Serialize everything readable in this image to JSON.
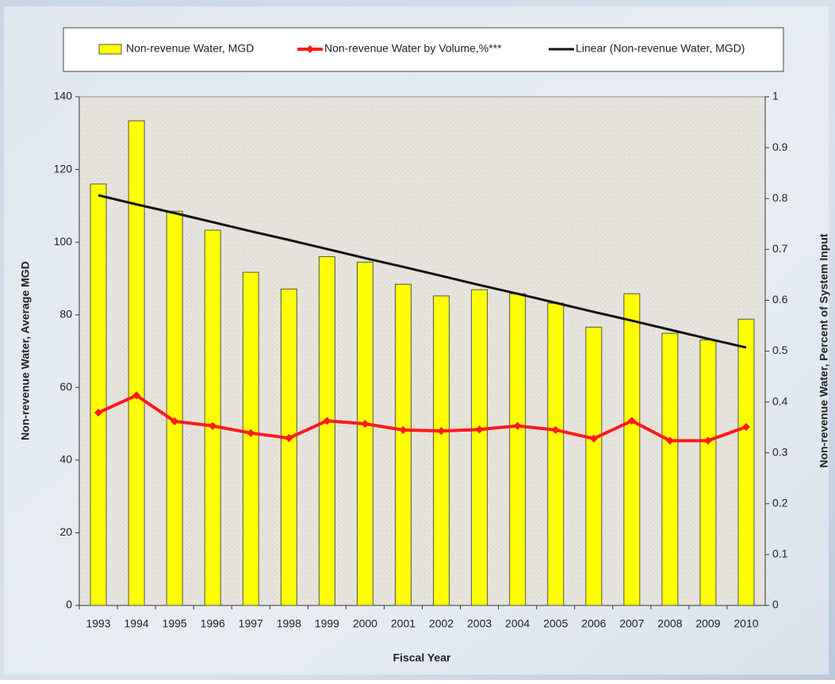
{
  "chart_data": {
    "type": "bar",
    "x_label": "Fiscal Year",
    "y_label": "Non-revenue Water, Average MGD",
    "y2_label": "Non-revenue Water, Percent of System Input",
    "categories": [
      "1993",
      "1994",
      "1995",
      "1996",
      "1997",
      "1998",
      "1999",
      "2000",
      "2001",
      "2002",
      "2003",
      "2004",
      "2005",
      "2006",
      "2007",
      "2008",
      "2009",
      "2010"
    ],
    "series": [
      {
        "name": "Non-revenue Water, MGD",
        "type": "bar",
        "color": "#ffff00",
        "values": [
          116,
          133.4,
          108.5,
          103.3,
          91.7,
          87.1,
          96,
          94.5,
          88.4,
          85.2,
          86.9,
          85.8,
          83.2,
          76.6,
          85.8,
          74.9,
          73.1,
          78.8
        ]
      },
      {
        "name": "Non-revenue Water by Volume,%***",
        "type": "line",
        "axis": "y2",
        "color": "#ff1a1a",
        "values": [
          0.379,
          0.413,
          0.362,
          0.353,
          0.339,
          0.329,
          0.363,
          0.357,
          0.345,
          0.343,
          0.346,
          0.353,
          0.345,
          0.328,
          0.363,
          0.324,
          0.324,
          0.351
        ]
      },
      {
        "name": "Linear (Non-revenue Water, MGD)",
        "type": "trend",
        "color": "#111111",
        "values": [
          112.9,
          110.4,
          108.0,
          105.5,
          103.0,
          100.6,
          98.1,
          95.6,
          93.2,
          90.7,
          88.2,
          85.8,
          83.3,
          80.8,
          78.4,
          75.9,
          73.4,
          71.0
        ]
      }
    ],
    "ylim": [
      0,
      140
    ],
    "yticks": [
      0,
      20,
      40,
      60,
      80,
      100,
      120,
      140
    ],
    "y2lim": [
      0,
      1
    ],
    "y2ticks": [
      0,
      0.1,
      0.2,
      0.3,
      0.4,
      0.5,
      0.6,
      0.7,
      0.8,
      0.9,
      1
    ]
  }
}
